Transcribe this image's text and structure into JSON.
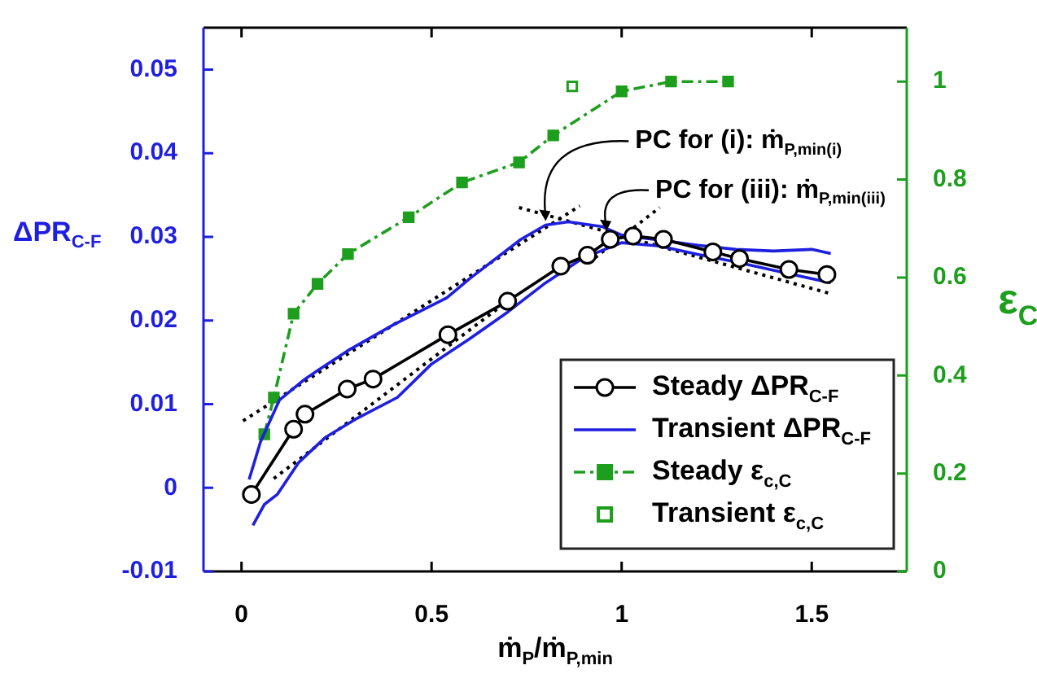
{
  "chart_data": {
    "type": "line",
    "xlabel": "ṁ$_{P}$/ṁ$_{P,min}$",
    "ylabel": "ΔPR$_{C-F}$",
    "y2label": "ε$_{C}$",
    "xlim": [
      -0.1,
      1.75
    ],
    "xticks": [
      0,
      0.5,
      1,
      1.5
    ],
    "ylim": [
      -0.01,
      0.055
    ],
    "yticks": [
      -0.01,
      0,
      0.01,
      0.02,
      0.03,
      0.04,
      0.05
    ],
    "y2lim": [
      0,
      1.11
    ],
    "y2ticks": [
      0,
      0.2,
      0.4,
      0.6,
      0.8,
      1
    ],
    "grid": false,
    "legend": "bottom right",
    "annotations": [
      {
        "text": "PC for (i): ṁ$_{P,min(i)}$",
        "x": 0.8,
        "y": 0.0317
      },
      {
        "text": "PC for (iii): ṁ$_{P,min(iii)}$",
        "x": 0.96,
        "y": 0.0305
      }
    ],
    "series": [
      {
        "name": "Steady ΔPR$_{C-F}$",
        "type": "line",
        "color": "#000000",
        "marker": "circle",
        "line_style": "solid",
        "x": [
          0.026,
          0.137,
          0.167,
          0.278,
          0.346,
          0.543,
          0.7,
          0.84,
          0.91,
          0.97,
          1.03,
          1.11,
          1.24,
          1.31,
          1.44,
          1.54
        ],
        "values": [
          -0.0008,
          0.007,
          0.0088,
          0.0118,
          0.013,
          0.0183,
          0.0223,
          0.0265,
          0.0278,
          0.0297,
          0.0301,
          0.0297,
          0.0282,
          0.0274,
          0.0261,
          0.0255
        ]
      },
      {
        "name": "Transient ΔPR$_{C-F}$",
        "type": "line",
        "color": "#1f1fe0",
        "marker": "none",
        "line_style": "solid",
        "x": [
          0.02,
          0.05,
          0.1,
          0.167,
          0.2,
          0.28,
          0.4,
          0.54,
          0.6,
          0.735,
          0.8,
          0.86,
          0.95,
          1.0,
          1.1,
          1.2,
          1.3,
          1.4,
          1.5,
          1.55
        ],
        "values": [
          0.001,
          0.0055,
          0.0105,
          0.013,
          0.014,
          0.0164,
          0.0195,
          0.0227,
          0.025,
          0.0297,
          0.0314,
          0.0318,
          0.0312,
          0.0302,
          0.0296,
          0.029,
          0.0285,
          0.0283,
          0.0285,
          0.028
        ]
      },
      {
        "type": "line",
        "color": "#1f1fe0",
        "marker": "none",
        "line_style": "solid",
        "x": [
          0.03,
          0.06,
          0.094,
          0.15,
          0.22,
          0.3,
          0.41,
          0.5,
          0.6,
          0.7,
          0.8,
          0.9,
          1.0,
          1.1,
          1.2,
          1.3,
          1.45,
          1.55
        ],
        "values": [
          -0.0045,
          -0.002,
          -0.0008,
          0.003,
          0.006,
          0.0082,
          0.0108,
          0.0148,
          0.0178,
          0.021,
          0.0245,
          0.0275,
          0.0293,
          0.0289,
          0.0279,
          0.027,
          0.0255,
          0.0245
        ]
      },
      {
        "name": "Steady ε$_{c,C}$",
        "type": "line",
        "axis": "y2",
        "color": "#1e9e1e",
        "marker": "square",
        "line_style": "dashed",
        "x": [
          0.06,
          0.085,
          0.137,
          0.2,
          0.28,
          0.44,
          0.58,
          0.73,
          0.82,
          1.0,
          1.13,
          1.28
        ],
        "values": [
          0.28,
          0.355,
          0.526,
          0.587,
          0.648,
          0.723,
          0.794,
          0.835,
          0.89,
          0.98,
          1.0,
          1.0
        ]
      },
      {
        "name": "Transient ε$_{c,C}$",
        "type": "scatter",
        "axis": "y2",
        "color": "#1e9e1e",
        "marker": "square",
        "x": [
          0.87
        ],
        "values": [
          0.99
        ]
      },
      {
        "type": "line",
        "color": "#000000",
        "marker": "none",
        "line_style": "dotted",
        "x": [
          0.004,
          0.89
        ],
        "values": [
          0.008,
          0.0337
        ]
      },
      {
        "type": "line",
        "color": "#000000",
        "marker": "none",
        "line_style": "dotted",
        "x": [
          0.085,
          0.72
        ],
        "values": [
          0.0011,
          0.023
        ]
      },
      {
        "type": "line",
        "color": "#000000",
        "marker": "none",
        "line_style": "dotted",
        "x": [
          0.73,
          1.55
        ],
        "values": [
          0.0335,
          0.0232
        ]
      },
      {
        "type": "line",
        "color": "#000000",
        "marker": "none",
        "line_style": "dotted",
        "x": [
          0.93,
          1.1
        ],
        "values": [
          0.0275,
          0.0335
        ]
      }
    ]
  }
}
